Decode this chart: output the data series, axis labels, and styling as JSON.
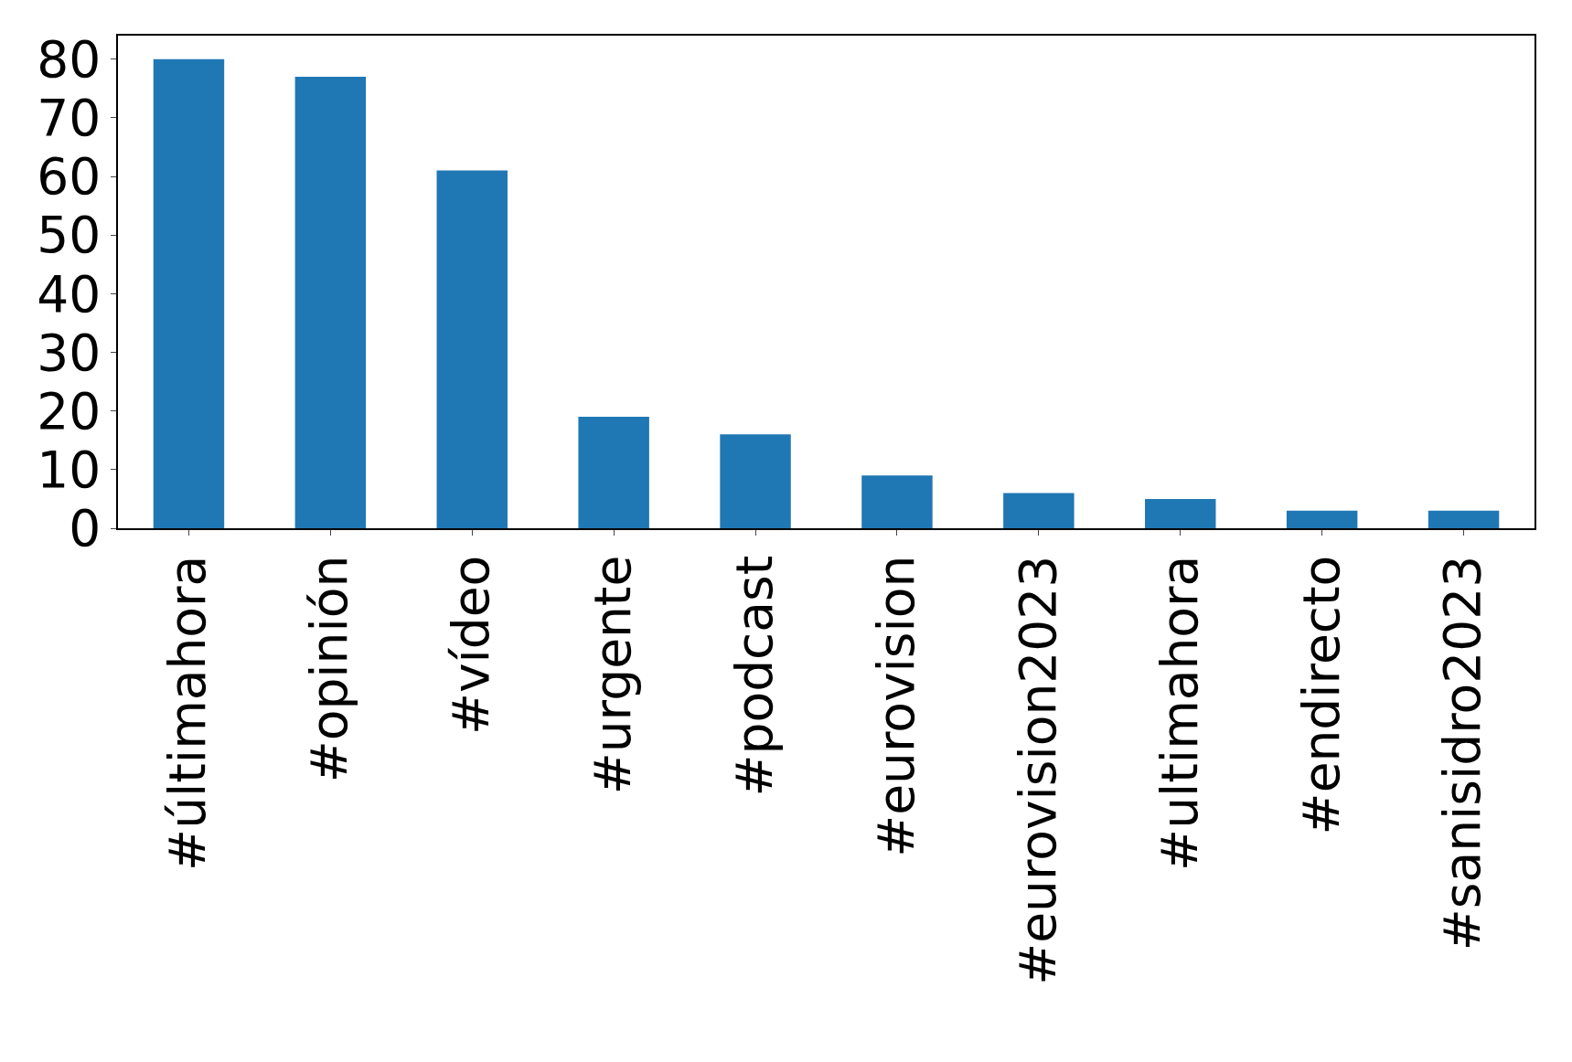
{
  "chart_data": {
    "type": "bar",
    "categories": [
      "#últimahora",
      "#opinión",
      "#vídeo",
      "#urgente",
      "#podcast",
      "#eurovision",
      "#eurovision2023",
      "#ultimahora",
      "#endirecto",
      "#sanisidro2023"
    ],
    "values": [
      80,
      77,
      61,
      19,
      16,
      9,
      6,
      5,
      3,
      3
    ],
    "color": "#1f77b4",
    "ylim": [
      0,
      84
    ],
    "yticks": [
      0,
      10,
      20,
      30,
      40,
      50,
      60,
      70,
      80
    ],
    "grid": false,
    "legend": false
  }
}
